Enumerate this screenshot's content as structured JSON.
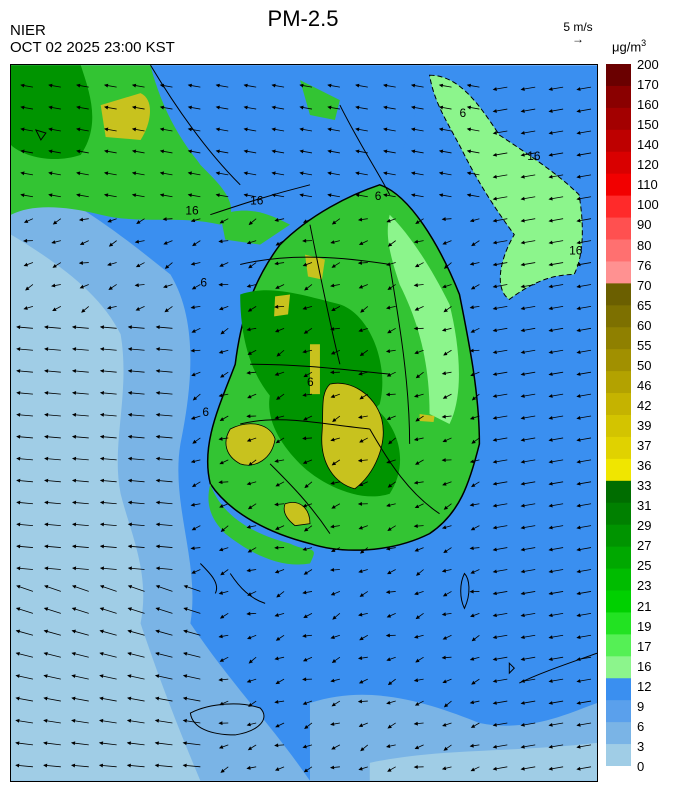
{
  "header": {
    "org": "NIER",
    "timestamp": "OCT 02 2025 23:00 KST",
    "title": "PM-2.5",
    "wind_scale_label": "5 m/s",
    "wind_arrow_glyph": "→",
    "unit": "μg/m",
    "unit_exp": "3"
  },
  "legend": {
    "labels": [
      "200",
      "170",
      "160",
      "150",
      "140",
      "120",
      "110",
      "100",
      "90",
      "80",
      "76",
      "70",
      "65",
      "60",
      "55",
      "50",
      "46",
      "42",
      "39",
      "37",
      "36",
      "33",
      "31",
      "29",
      "27",
      "25",
      "23",
      "21",
      "19",
      "17",
      "16",
      "12",
      "9",
      "6",
      "3",
      "0"
    ],
    "bins": [
      {
        "color": "#6a0000"
      },
      {
        "color": "#8a0000"
      },
      {
        "color": "#a30000"
      },
      {
        "color": "#be0000"
      },
      {
        "color": "#d90000"
      },
      {
        "color": "#f20000"
      },
      {
        "color": "#ff2a2a"
      },
      {
        "color": "#ff5050"
      },
      {
        "color": "#ff7070"
      },
      {
        "color": "#ff9191"
      },
      {
        "color": "#6b5f00"
      },
      {
        "color": "#7d7000"
      },
      {
        "color": "#8f8000"
      },
      {
        "color": "#a19000"
      },
      {
        "color": "#b3a200"
      },
      {
        "color": "#c5b300"
      },
      {
        "color": "#d3c400"
      },
      {
        "color": "#e0d200"
      },
      {
        "color": "#f0e600"
      },
      {
        "color": "#006d00"
      },
      {
        "color": "#008000"
      },
      {
        "color": "#009400"
      },
      {
        "color": "#00a800"
      },
      {
        "color": "#00bc00"
      },
      {
        "color": "#00d000"
      },
      {
        "color": "#22e222"
      },
      {
        "color": "#55f055"
      },
      {
        "color": "#8cf58c"
      },
      {
        "color": "#3a8ff0"
      },
      {
        "color": "#5aa0ec"
      },
      {
        "color": "#7ab4e6"
      },
      {
        "color": "#a0cde6"
      }
    ]
  },
  "map": {
    "contour_labels": [
      "16",
      "16",
      "16",
      "16",
      "6",
      "6",
      "6",
      "6",
      "6"
    ],
    "wind_direction": "mostly westward over the sea, southward/eastward over the peninsula"
  },
  "colors": {
    "sea_low": "#a0cde6",
    "sea_mid": "#7ab4e6",
    "sea_high": "#3a8ff0",
    "land_green": "#33c433",
    "land_dark_green": "#009400",
    "land_yellow": "#c8c21e",
    "land_pale": "#8cf58c",
    "boundary": "#000000"
  }
}
